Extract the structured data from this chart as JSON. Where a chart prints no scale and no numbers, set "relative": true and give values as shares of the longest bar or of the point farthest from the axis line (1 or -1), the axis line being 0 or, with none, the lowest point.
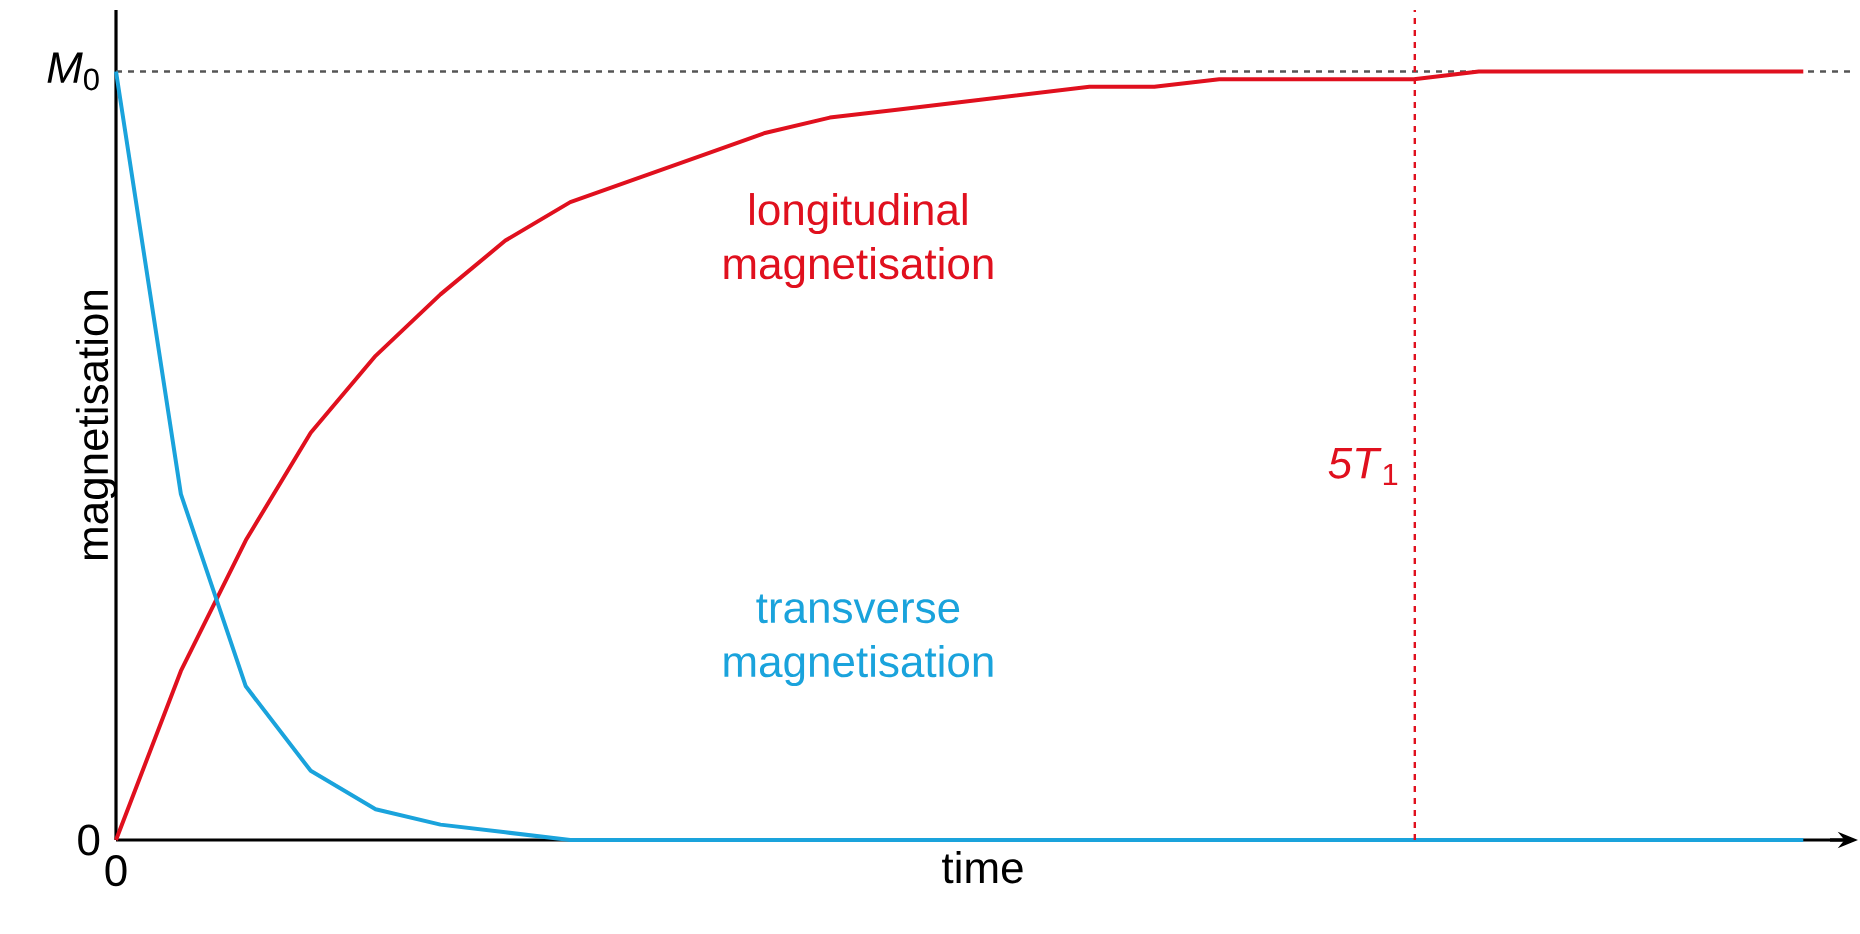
{
  "chart_data": {
    "type": "line",
    "relative": true,
    "xlabel": "time",
    "ylabel": "magnetisation",
    "categories": [
      null,
      null,
      null,
      null,
      null,
      null,
      null,
      null,
      null,
      null,
      null,
      null,
      null,
      null,
      null,
      null,
      null,
      null,
      null,
      null,
      null,
      null,
      null,
      null,
      null,
      null,
      null
    ],
    "series": [
      {
        "name": "longitudinal magnetisation",
        "color": "#e0101e",
        "values": [
          0,
          0.22,
          0.39,
          0.53,
          0.63,
          0.71,
          0.78,
          0.83,
          0.86,
          0.89,
          0.92,
          0.94,
          0.95,
          0.96,
          0.97,
          0.98,
          0.98,
          0.99,
          0.99,
          0.99,
          0.99,
          1,
          1,
          1,
          1,
          1,
          1
        ]
      },
      {
        "name": "transverse magnetisation",
        "color": "#1aa3dc",
        "values": [
          1,
          0.45,
          0.2,
          0.09,
          0.04,
          0.02,
          0.01,
          0,
          0,
          0,
          0,
          0,
          0,
          0,
          0,
          0,
          0,
          0,
          0,
          0,
          0,
          0,
          0,
          0,
          0,
          0,
          0
        ]
      }
    ],
    "ref_lines": [
      {
        "axis": "y",
        "value": 1,
        "label": null,
        "color": "#555555",
        "line_style": "dashed"
      }
    ],
    "annotations": [
      "0",
      "*M*$_{0}$",
      "0",
      "*5T*$_{1}$"
    ],
    "legend": false
  }
}
